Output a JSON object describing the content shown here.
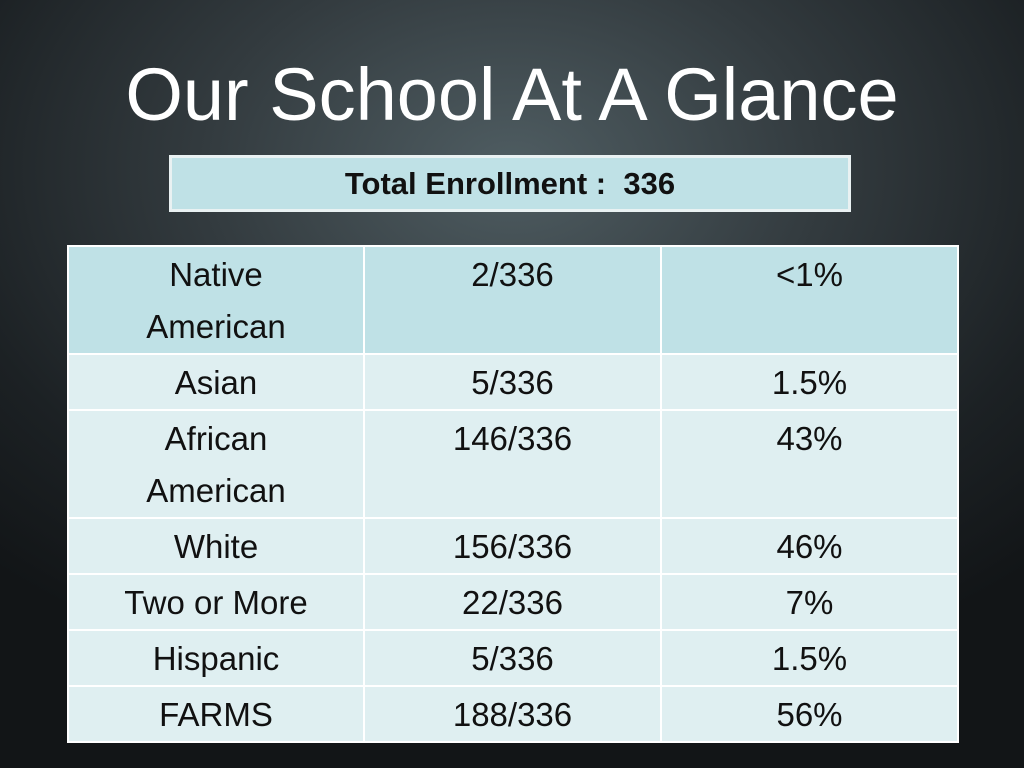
{
  "title": "Our School At A Glance",
  "enrollment": {
    "label": "Total Enrollment :  ",
    "value": "336"
  },
  "table": {
    "rows": [
      {
        "groups": [
          "Native",
          "American"
        ],
        "counts": [
          "2/336"
        ],
        "percents": [
          "<1%"
        ]
      },
      {
        "groups": [
          "Asian"
        ],
        "counts": [
          "5/336"
        ],
        "percents": [
          "1.5%"
        ]
      },
      {
        "groups": [
          "African",
          "American"
        ],
        "counts": [
          "146/336"
        ],
        "percents": [
          "43%"
        ]
      },
      {
        "groups": [
          "White"
        ],
        "counts": [
          "156/336"
        ],
        "percents": [
          "46%"
        ]
      },
      {
        "groups": [
          "Two or More"
        ],
        "counts": [
          "22/336"
        ],
        "percents": [
          "7%"
        ]
      },
      {
        "groups": [
          "Hispanic"
        ],
        "counts": [
          "5/336"
        ],
        "percents": [
          "1.5%"
        ]
      },
      {
        "groups": [
          "FARMS"
        ],
        "counts": [
          "188/336"
        ],
        "percents": [
          "56%"
        ]
      }
    ]
  },
  "colors": {
    "header_fill": "#bfe1e6",
    "row_fill_light": "#dfeff1",
    "text": "#111111",
    "title_text": "#ffffff"
  }
}
